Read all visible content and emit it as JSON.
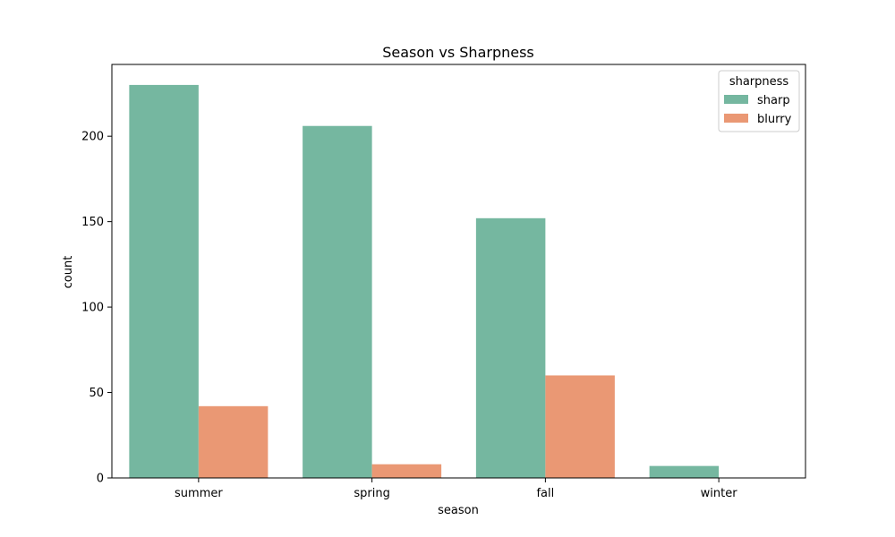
{
  "chart_data": {
    "type": "bar",
    "title": "Season vs Sharpness",
    "xlabel": "season",
    "ylabel": "count",
    "categories": [
      "summer",
      "spring",
      "fall",
      "winter"
    ],
    "series": [
      {
        "name": "sharp",
        "color": "#75b7a0",
        "values": [
          230,
          206,
          152,
          7
        ]
      },
      {
        "name": "blurry",
        "color": "#ea9874",
        "values": [
          42,
          8,
          60,
          0
        ]
      }
    ],
    "ylim": [
      0,
      242
    ],
    "yticks": [
      0,
      50,
      100,
      150,
      200
    ],
    "legend": {
      "title": "sharpness",
      "placement": "top-right"
    },
    "grid": false
  }
}
